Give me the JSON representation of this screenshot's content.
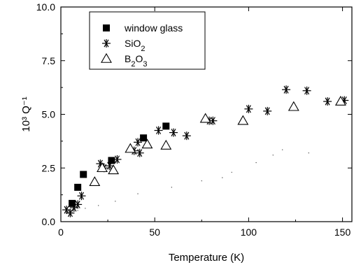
{
  "chart_data": {
    "type": "scatter",
    "title": "",
    "xlabel": "Temperature (K)",
    "ylabel": "10³ Q⁻¹",
    "xlim": [
      0,
      155
    ],
    "ylim": [
      0,
      10
    ],
    "x_ticks": [
      "0",
      "50",
      "100",
      "150"
    ],
    "y_ticks": [
      "0.0",
      "2.5",
      "5.0",
      "7.5",
      "10.0"
    ],
    "legend_position": "top-left",
    "grid": false,
    "series": [
      {
        "name": "window glass",
        "marker": "filled-square",
        "color": "#000000",
        "points": [
          {
            "x": 6,
            "y": 0.85
          },
          {
            "x": 9,
            "y": 1.6
          },
          {
            "x": 12,
            "y": 2.2
          },
          {
            "x": 27,
            "y": 2.85
          },
          {
            "x": 44,
            "y": 3.9
          },
          {
            "x": 56,
            "y": 4.45
          }
        ]
      },
      {
        "name": "SiO2",
        "marker": "asterisk",
        "color": "#000000",
        "points": [
          {
            "x": 3,
            "y": 0.55
          },
          {
            "x": 5,
            "y": 0.4
          },
          {
            "x": 7,
            "y": 0.65
          },
          {
            "x": 9,
            "y": 0.8
          },
          {
            "x": 11,
            "y": 1.2
          },
          {
            "x": 21,
            "y": 2.7
          },
          {
            "x": 23,
            "y": 2.5
          },
          {
            "x": 26,
            "y": 2.6
          },
          {
            "x": 30,
            "y": 2.9
          },
          {
            "x": 39,
            "y": 3.3
          },
          {
            "x": 41,
            "y": 3.7
          },
          {
            "x": 42,
            "y": 3.2
          },
          {
            "x": 52,
            "y": 4.25
          },
          {
            "x": 60,
            "y": 4.15
          },
          {
            "x": 67,
            "y": 4.0
          },
          {
            "x": 79,
            "y": 4.7
          },
          {
            "x": 81,
            "y": 4.7
          },
          {
            "x": 100,
            "y": 5.25
          },
          {
            "x": 110,
            "y": 5.15
          },
          {
            "x": 120,
            "y": 6.15
          },
          {
            "x": 131,
            "y": 6.1
          },
          {
            "x": 142,
            "y": 5.6
          },
          {
            "x": 151,
            "y": 5.65
          }
        ]
      },
      {
        "name": "B2O3",
        "marker": "open-triangle",
        "color": "#000000",
        "points": [
          {
            "x": 18,
            "y": 1.85
          },
          {
            "x": 22,
            "y": 2.5
          },
          {
            "x": 28,
            "y": 2.4
          },
          {
            "x": 37,
            "y": 3.4
          },
          {
            "x": 46,
            "y": 3.6
          },
          {
            "x": 56,
            "y": 3.55
          },
          {
            "x": 77,
            "y": 4.8
          },
          {
            "x": 97,
            "y": 4.7
          },
          {
            "x": 124,
            "y": 5.35
          },
          {
            "x": 149,
            "y": 5.6
          }
        ]
      },
      {
        "name": "",
        "marker": "dot",
        "color": "#555555",
        "points": [
          {
            "x": 6,
            "y": 0.42
          },
          {
            "x": 9,
            "y": 0.52
          },
          {
            "x": 13,
            "y": 0.62
          },
          {
            "x": 20,
            "y": 0.75
          },
          {
            "x": 29,
            "y": 0.95
          },
          {
            "x": 41,
            "y": 1.3
          },
          {
            "x": 59,
            "y": 1.6
          },
          {
            "x": 75,
            "y": 1.9
          },
          {
            "x": 86,
            "y": 2.05
          },
          {
            "x": 91,
            "y": 2.3
          },
          {
            "x": 104,
            "y": 2.75
          },
          {
            "x": 113,
            "y": 3.1
          },
          {
            "x": 118,
            "y": 3.35
          },
          {
            "x": 132,
            "y": 3.2
          }
        ]
      }
    ]
  }
}
